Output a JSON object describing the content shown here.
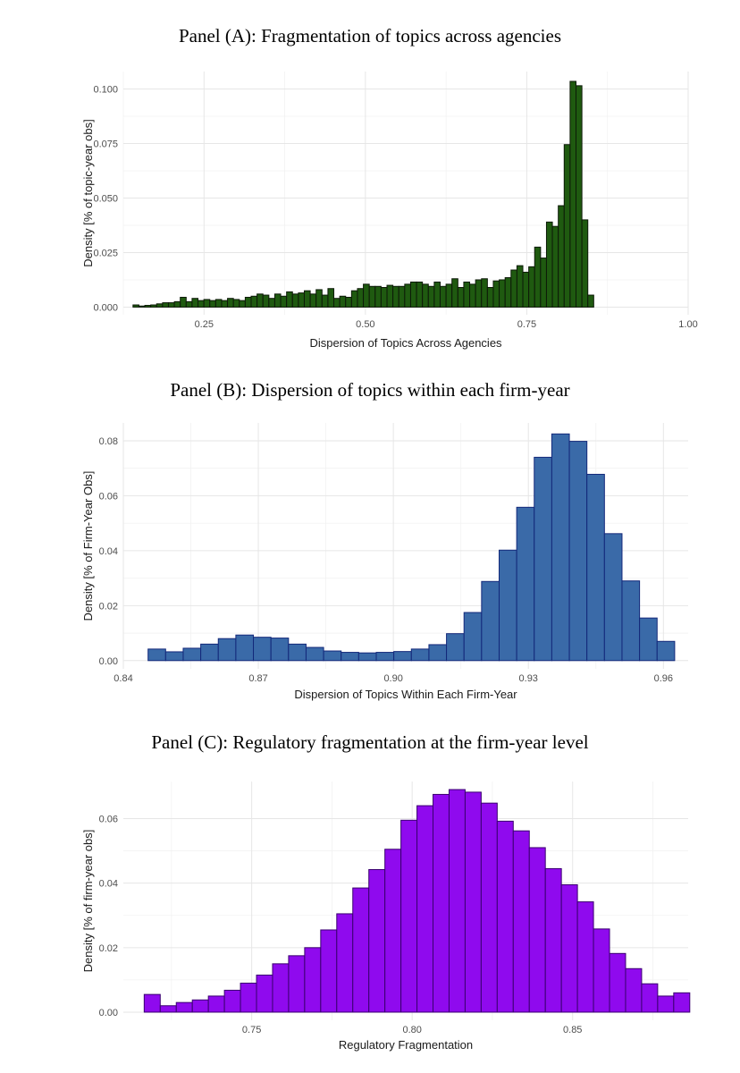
{
  "chart_data": [
    {
      "type": "bar",
      "title": "Panel (A): Fragmentation of topics across agencies",
      "xlabel": "Dispersion of Topics Across Agencies",
      "ylabel": "Density [% of topic-year obs]",
      "xlim": [
        0.125,
        1.0
      ],
      "ylim": [
        -0.0035,
        0.108
      ],
      "xticks": [
        0.25,
        0.5,
        0.75,
        1.0
      ],
      "xtick_labels": [
        "0.25",
        "0.50",
        "0.75",
        "1.00"
      ],
      "yticks": [
        0.0,
        0.025,
        0.05,
        0.075,
        0.1
      ],
      "ytick_labels": [
        "0.000",
        "0.025",
        "0.050",
        "0.075",
        "0.100"
      ],
      "bin_start": 0.14,
      "bin_width": 0.00915,
      "fill": "#1f5a10",
      "stroke": "#0d1a08",
      "values": [
        0.001,
        0.0005,
        0.0008,
        0.001,
        0.0015,
        0.002,
        0.002,
        0.0025,
        0.0045,
        0.0025,
        0.004,
        0.003,
        0.0035,
        0.003,
        0.0035,
        0.003,
        0.004,
        0.0035,
        0.003,
        0.0045,
        0.005,
        0.006,
        0.0055,
        0.004,
        0.006,
        0.005,
        0.007,
        0.006,
        0.0065,
        0.0075,
        0.006,
        0.008,
        0.0055,
        0.0085,
        0.004,
        0.005,
        0.0045,
        0.0075,
        0.0085,
        0.0105,
        0.0095,
        0.0095,
        0.009,
        0.01,
        0.0095,
        0.0095,
        0.0105,
        0.0115,
        0.0115,
        0.0105,
        0.0095,
        0.0115,
        0.0095,
        0.0105,
        0.013,
        0.009,
        0.0115,
        0.0105,
        0.0125,
        0.013,
        0.009,
        0.012,
        0.0125,
        0.0135,
        0.017,
        0.019,
        0.016,
        0.0185,
        0.0275,
        0.0225,
        0.039,
        0.037,
        0.0465,
        0.0745,
        0.1035,
        0.1015,
        0.04,
        0.0055
      ]
    },
    {
      "type": "bar",
      "title": "Panel (B): Dispersion of topics within each firm-year",
      "xlabel": "Dispersion of Topics Within Each Firm-Year",
      "ylabel": "Density [% of Firm-Year Obs]",
      "xlim": [
        0.84,
        0.9655
      ],
      "ylim": [
        -0.003,
        0.0865
      ],
      "xticks": [
        0.84,
        0.87,
        0.9,
        0.93,
        0.96
      ],
      "xtick_labels": [
        "0.84",
        "0.87",
        "0.90",
        "0.93",
        "0.96"
      ],
      "yticks": [
        0.0,
        0.02,
        0.04,
        0.06,
        0.08
      ],
      "ytick_labels": [
        "0.00",
        "0.02",
        "0.04",
        "0.06",
        "0.08"
      ],
      "bin_start": 0.8455,
      "bin_width": 0.0039,
      "fill": "#3a6aa8",
      "stroke": "#13287a",
      "values": [
        0.0042,
        0.0032,
        0.0045,
        0.006,
        0.008,
        0.0093,
        0.0085,
        0.0082,
        0.006,
        0.0048,
        0.0035,
        0.003,
        0.0028,
        0.003,
        0.0033,
        0.0042,
        0.0058,
        0.0098,
        0.0175,
        0.0288,
        0.0402,
        0.0558,
        0.074,
        0.0825,
        0.0798,
        0.0678,
        0.0462,
        0.029,
        0.0155,
        0.007
      ]
    },
    {
      "type": "bar",
      "title": "Panel (C): Regulatory fragmentation at the firm-year level",
      "xlabel": "Regulatory Fragmentation",
      "ylabel": "Density [% of firm-year obs]",
      "xlim": [
        0.71,
        0.886
      ],
      "ylim": [
        -0.0025,
        0.0715
      ],
      "xticks": [
        0.75,
        0.8,
        0.85
      ],
      "xtick_labels": [
        "0.75",
        "0.80",
        "0.85"
      ],
      "yticks": [
        0.0,
        0.02,
        0.04,
        0.06
      ],
      "ytick_labels": [
        "0.00",
        "0.02",
        "0.04",
        "0.06"
      ],
      "bin_start": 0.7165,
      "bin_width": 0.005,
      "fill": "#8f0aee",
      "stroke": "#3a0070",
      "values": [
        0.0055,
        0.002,
        0.003,
        0.0038,
        0.005,
        0.0068,
        0.009,
        0.0115,
        0.015,
        0.0175,
        0.02,
        0.0255,
        0.0305,
        0.0385,
        0.0442,
        0.0505,
        0.0595,
        0.064,
        0.0675,
        0.069,
        0.0682,
        0.0648,
        0.0592,
        0.0562,
        0.051,
        0.0445,
        0.0395,
        0.0342,
        0.0258,
        0.0182,
        0.0135,
        0.0088,
        0.005,
        0.006
      ]
    }
  ]
}
